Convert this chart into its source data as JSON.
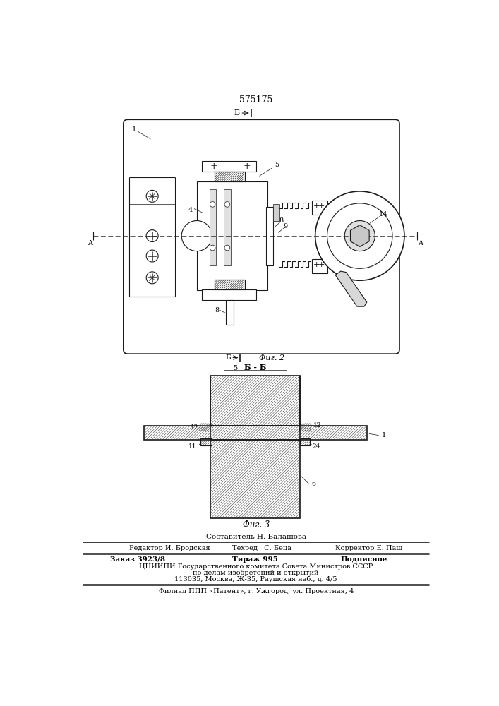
{
  "patent_number": "575175",
  "fig1_label": "Фиг. 2",
  "fig2_label": "Фиг. 3",
  "section_label": "Б - Б",
  "b_arrow_label": "Б",
  "a_label": "A",
  "composer": "Составитель Н. Балашова",
  "editor_label": "Редактор И. Бродская",
  "techred_label": "Техред   С. Беца",
  "corrector_label": "Корректор Е. Паш",
  "order_label": "Заказ 3923/8",
  "tirazh_label": "Тираж 995",
  "podpisnoe_label": "Подписное",
  "org_line1": "ЦНИИПИ Государственного комитета Совета Министров СССР",
  "org_line2": "по делам изобретений и открытий",
  "org_line3": "113035, Москва, Ж-35, Раушская наб., д. 4/5",
  "filial_line": "Филиал ППП «Патент», г. Ужгород, ул. Проектная, 4"
}
